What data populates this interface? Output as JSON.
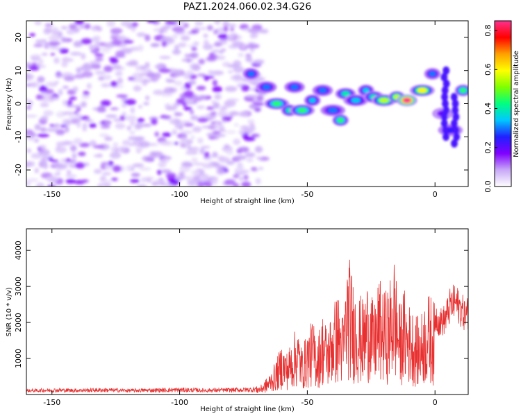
{
  "title": "PAZ1.2024.060.02.34.G26",
  "chart_data": [
    {
      "type": "heatmap",
      "xlabel": "Height of straight line (km)",
      "ylabel": "Frequency (Hz)",
      "xlim": [
        -160,
        13
      ],
      "ylim": [
        -25,
        25
      ],
      "xticks": [
        -150,
        -100,
        -50,
        0
      ],
      "yticks": [
        -20,
        -10,
        0,
        10,
        20
      ],
      "colorbar": {
        "label": "Normalized spectral amplitude",
        "range": [
          0.0,
          0.85
        ],
        "ticks": [
          0.0,
          0.2,
          0.4,
          0.6,
          0.8
        ],
        "colors": [
          "#ffffff",
          "#c8a8f8",
          "#8000ff",
          "#2020ff",
          "#00c8ff",
          "#00ff80",
          "#80ff00",
          "#ffff00",
          "#ffa000",
          "#ff0000",
          "#ff3090"
        ]
      },
      "regions": [
        {
          "name": "noise",
          "x": [
            -160,
            -70
          ],
          "y": [
            -25,
            25
          ],
          "level": 0.1
        },
        {
          "x": -72,
          "y": 9,
          "value": 0.3
        },
        {
          "x": -66,
          "y": 5,
          "value": 0.3
        },
        {
          "x": -62,
          "y": 0,
          "value": 0.45
        },
        {
          "x": -57,
          "y": -2,
          "value": 0.4
        },
        {
          "x": -55,
          "y": 5,
          "value": 0.3
        },
        {
          "x": -52,
          "y": -2,
          "value": 0.45
        },
        {
          "x": -48,
          "y": 1,
          "value": 0.35
        },
        {
          "x": -44,
          "y": 4,
          "value": 0.3
        },
        {
          "x": -40,
          "y": -2,
          "value": 0.3
        },
        {
          "x": -37,
          "y": -5,
          "value": 0.45
        },
        {
          "x": -35,
          "y": 3,
          "value": 0.4
        },
        {
          "x": -31,
          "y": 1,
          "value": 0.35
        },
        {
          "x": -27,
          "y": 4,
          "value": 0.35
        },
        {
          "x": -24,
          "y": 2,
          "value": 0.4
        },
        {
          "x": -20,
          "y": 1,
          "value": 0.55
        },
        {
          "x": -15,
          "y": 2,
          "value": 0.55
        },
        {
          "x": -11,
          "y": 1,
          "value": 0.85
        },
        {
          "x": -5,
          "y": 4,
          "value": 0.6
        },
        {
          "x": -1,
          "y": 9,
          "value": 0.3
        },
        {
          "x": 3,
          "y": -3,
          "value": 0.2
        },
        {
          "x": 6,
          "y": -8,
          "value": 0.25
        },
        {
          "x": 11,
          "y": 4,
          "value": 0.45
        }
      ]
    },
    {
      "type": "line",
      "xlabel": "Height of straight line (km)",
      "ylabel": "SNR (10 * v/v)",
      "xlim": [
        -160,
        13
      ],
      "ylim": [
        0,
        4600
      ],
      "xticks": [
        -150,
        -100,
        -50,
        0
      ],
      "yticks": [
        1000,
        2000,
        3000,
        4000
      ],
      "color": "#e83030",
      "series": [
        {
          "x": [
            -160,
            -150,
            -140,
            -130,
            -120,
            -110,
            -100,
            -90,
            -80,
            -72,
            -68,
            -65,
            -62,
            -60,
            -58,
            -56,
            -54,
            -52,
            -50,
            -48,
            -46,
            -44,
            -42,
            -40,
            -38,
            -36,
            -34,
            -32,
            -30,
            -28,
            -26,
            -24,
            -22,
            -20,
            -18,
            -16,
            -14,
            -12,
            -10,
            -8,
            -6,
            -4,
            -2,
            0,
            2,
            4,
            6,
            8,
            10,
            12,
            13
          ],
          "values": [
            100,
            130,
            120,
            140,
            110,
            130,
            150,
            120,
            140,
            160,
            250,
            500,
            900,
            1300,
            1100,
            1400,
            1800,
            1200,
            1600,
            1900,
            1500,
            2100,
            1700,
            2300,
            2600,
            2000,
            3700,
            2900,
            2600,
            2400,
            3100,
            2200,
            3000,
            2600,
            2800,
            3600,
            2300,
            2700,
            2300,
            2100,
            1900,
            2400,
            2600,
            2300,
            2100,
            2200,
            2600,
            2700,
            2500,
            2300,
            2400
          ]
        }
      ]
    }
  ]
}
